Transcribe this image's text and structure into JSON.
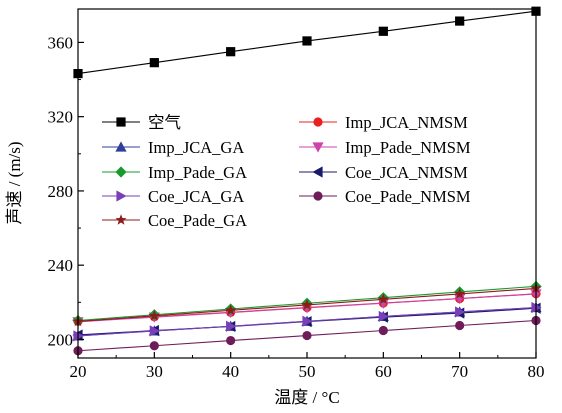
{
  "chart_data": {
    "type": "line",
    "xlabel": "温度 / °C",
    "ylabel": "声速 / (m/s)",
    "xlim": [
      20,
      80
    ],
    "ylim": [
      190,
      378
    ],
    "xticks": [
      20,
      30,
      40,
      50,
      60,
      70,
      80
    ],
    "yticks": [
      200,
      240,
      280,
      320,
      360
    ],
    "grid": false,
    "legend_position": "upper-center, two columns",
    "x": [
      20,
      30,
      40,
      50,
      60,
      70,
      80
    ],
    "series": [
      {
        "name": "空气",
        "marker": "square",
        "color": "#000000",
        "values": [
          343.2,
          349.1,
          355.0,
          360.8,
          366.0,
          371.5,
          376.8
        ]
      },
      {
        "name": "Imp_JCA_NMSM",
        "marker": "circle",
        "color": "#e8201e",
        "values": [
          209.8,
          212.2,
          214.6,
          217.2,
          219.6,
          222.0,
          224.6
        ]
      },
      {
        "name": "Imp_JCA_GA",
        "marker": "triangle-up",
        "color": "#2f3f9a",
        "values": [
          201.9,
          204.6,
          207.1,
          209.8,
          212.4,
          214.8,
          217.2
        ]
      },
      {
        "name": "Imp_Pade_NMSM",
        "marker": "triangle-down",
        "color": "#cc44aa",
        "values": [
          209.5,
          212.0,
          214.5,
          217.0,
          219.5,
          222.0,
          224.5
        ]
      },
      {
        "name": "Imp_Pade_GA",
        "marker": "diamond",
        "color": "#1a9a2e",
        "values": [
          210.2,
          213.3,
          216.4,
          219.5,
          222.5,
          225.6,
          228.6
        ]
      },
      {
        "name": "Coe_JCA_NMSM",
        "marker": "triangle-left",
        "color": "#1a1a6a",
        "values": [
          202.4,
          204.8,
          207.0,
          209.6,
          212.0,
          214.2,
          216.8
        ]
      },
      {
        "name": "Coe_JCA_GA",
        "marker": "triangle-right",
        "color": "#7a3fb8",
        "values": [
          201.9,
          204.6,
          207.1,
          209.8,
          212.4,
          214.8,
          217.2
        ]
      },
      {
        "name": "Coe_Pade_NMSM",
        "marker": "circle",
        "color": "#6e1d5a",
        "values": [
          193.9,
          196.6,
          199.4,
          202.1,
          204.8,
          207.5,
          210.2
        ]
      },
      {
        "name": "Coe_Pade_GA",
        "marker": "star",
        "color": "#8e1b1b",
        "values": [
          209.7,
          212.7,
          215.7,
          218.6,
          221.6,
          224.5,
          227.5
        ]
      }
    ]
  }
}
